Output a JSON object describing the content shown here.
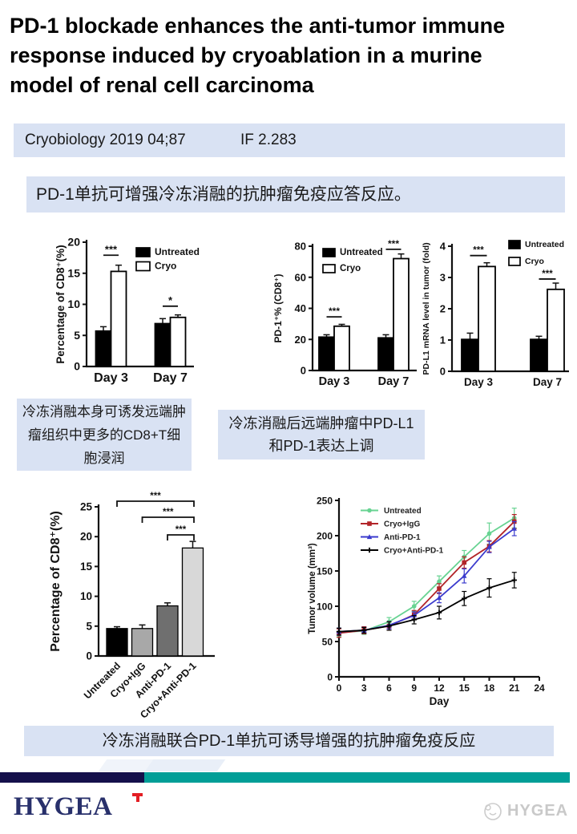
{
  "slide": {
    "title": "PD-1 blockade enhances the anti-tumor immune response induced by cryoablation in a murine model of renal cell carcinoma",
    "citation": {
      "journal_line": "Cryobiology 2019 04;87",
      "impact_factor": "IF 2.283"
    },
    "summary": "PD-1单抗可增强冷冻消融的抗肿瘤免疫应答反应。",
    "captions": {
      "left": "冷冻消融本身可诱发远端肿瘤组织中更多的CD8+T细胞浸润",
      "right": "冷冻消融后远端肿瘤中PD-L1和PD-1表达上调",
      "bottom": "冷冻消融联合PD-1单抗可诱导增强的抗肿瘤免疫反应"
    },
    "footer": {
      "logo": "HYGEA",
      "watermark": "HYGEA"
    },
    "colors": {
      "banner_bg": "#d9e2f3",
      "navy_bar": "#15104b",
      "teal_bar": "#019e97",
      "logo_navy": "#28306b",
      "logo_red": "#e31e24",
      "watermark_gray": "#c9c9c9"
    }
  },
  "chart_data": [
    {
      "id": "cd8-by-day",
      "type": "grouped_bar",
      "ylabel": "Percentage of CD8⁺(%)",
      "ylim": [
        0,
        20
      ],
      "yticks": [
        0,
        5,
        10,
        15,
        20
      ],
      "categories": [
        "Day 3",
        "Day 7"
      ],
      "series": [
        {
          "name": "Untreated",
          "fill": "#000000",
          "values": [
            5.7,
            6.9
          ],
          "errors": [
            0.7,
            0.8
          ]
        },
        {
          "name": "Cryo",
          "fill": "#ffffff",
          "values": [
            15.3,
            7.9
          ],
          "errors": [
            1.0,
            0.4
          ]
        }
      ],
      "significance": [
        {
          "category": "Day 3",
          "label": "***",
          "y": 17.9
        },
        {
          "category": "Day 7",
          "label": "*",
          "y": 9.7
        }
      ],
      "legend_position": "top-right"
    },
    {
      "id": "pd1-pct-cd8",
      "type": "grouped_bar",
      "ylabel": "PD-1⁺% (CD8⁺)",
      "ylim": [
        0,
        80
      ],
      "yticks": [
        0,
        20,
        40,
        60,
        80
      ],
      "categories": [
        "Day 3",
        "Day 7"
      ],
      "series": [
        {
          "name": "Untreated",
          "fill": "#000000",
          "values": [
            21.5,
            21.0
          ],
          "errors": [
            1.5,
            2.0
          ]
        },
        {
          "name": "Cryo",
          "fill": "#ffffff",
          "values": [
            28.5,
            72.0
          ],
          "errors": [
            1.2,
            3.0
          ]
        }
      ],
      "significance": [
        {
          "category": "Day 3",
          "label": "***",
          "y": 34.5
        },
        {
          "category": "Day 7",
          "label": "***",
          "y": 78
        }
      ],
      "legend_position": "top-left"
    },
    {
      "id": "pdl1-mrna",
      "type": "grouped_bar",
      "ylabel": "PD-L1 mRNA level in tumor (fold)",
      "ylim": [
        0,
        4
      ],
      "yticks": [
        0,
        1,
        2,
        3,
        4
      ],
      "categories": [
        "Day 3",
        "Day 7"
      ],
      "series": [
        {
          "name": "Untreated",
          "fill": "#000000",
          "values": [
            1.02,
            1.02
          ],
          "errors": [
            0.2,
            0.1
          ]
        },
        {
          "name": "Cryo",
          "fill": "#ffffff",
          "values": [
            3.35,
            2.62
          ],
          "errors": [
            0.12,
            0.2
          ]
        }
      ],
      "significance": [
        {
          "category": "Day 3",
          "label": "***",
          "y": 3.7
        },
        {
          "category": "Day 7",
          "label": "***",
          "y": 2.95
        }
      ],
      "legend_position": "top-right"
    },
    {
      "id": "cd8-by-treatment",
      "type": "bar",
      "ylabel": "Percentage of CD8⁺(%)",
      "ylim": [
        0,
        25
      ],
      "yticks": [
        0,
        5,
        10,
        15,
        20,
        25
      ],
      "categories": [
        "Untreated",
        "Cryo+IgG",
        "Anti-PD-1",
        "Cryo+Anti-PD-1"
      ],
      "values": [
        4.6,
        4.6,
        8.4,
        18.1
      ],
      "errors": [
        0.3,
        0.6,
        0.5,
        1.1
      ],
      "bar_colors": [
        "#000000",
        "#a8a8a8",
        "#6f6f6f",
        "#d8d8d8"
      ],
      "brackets": [
        {
          "from": 0,
          "to": 3,
          "label": "***"
        },
        {
          "from": 1,
          "to": 3,
          "label": "***"
        },
        {
          "from": 2,
          "to": 3,
          "label": "***"
        }
      ]
    },
    {
      "id": "tumor-volume",
      "type": "line",
      "xlabel": "Day",
      "ylabel": "Tumor volume (mm³)",
      "xlim": [
        0,
        24
      ],
      "xticks": [
        0,
        3,
        6,
        9,
        12,
        15,
        18,
        21,
        24
      ],
      "ylim": [
        0,
        250
      ],
      "yticks": [
        0,
        50,
        100,
        150,
        200,
        250
      ],
      "x": [
        0,
        3,
        6,
        9,
        12,
        15,
        18,
        21
      ],
      "series": [
        {
          "name": "Untreated",
          "color": "#67d392",
          "marker": "circle",
          "values": [
            63,
            65,
            78,
            100,
            135,
            170,
            203,
            225
          ],
          "errors": [
            6,
            5,
            6,
            7,
            8,
            9,
            15,
            14
          ]
        },
        {
          "name": "Cryo+IgG",
          "color": "#b22428",
          "marker": "square",
          "values": [
            62,
            66,
            72,
            88,
            125,
            162,
            185,
            220
          ],
          "errors": [
            6,
            5,
            6,
            6,
            7,
            8,
            8,
            10
          ]
        },
        {
          "name": "Anti-PD-1",
          "color": "#3b3bcd",
          "marker": "triangle",
          "values": [
            64,
            66,
            73,
            87,
            112,
            143,
            184,
            210
          ],
          "errors": [
            5,
            4,
            5,
            5,
            7,
            10,
            8,
            10
          ]
        },
        {
          "name": "Cryo+Anti-PD-1",
          "color": "#000000",
          "marker": "plus",
          "values": [
            64,
            66,
            72,
            81,
            91,
            111,
            126,
            137
          ],
          "errors": [
            5,
            4,
            6,
            6,
            9,
            10,
            13,
            11
          ]
        }
      ],
      "legend_position": "top-left"
    }
  ]
}
